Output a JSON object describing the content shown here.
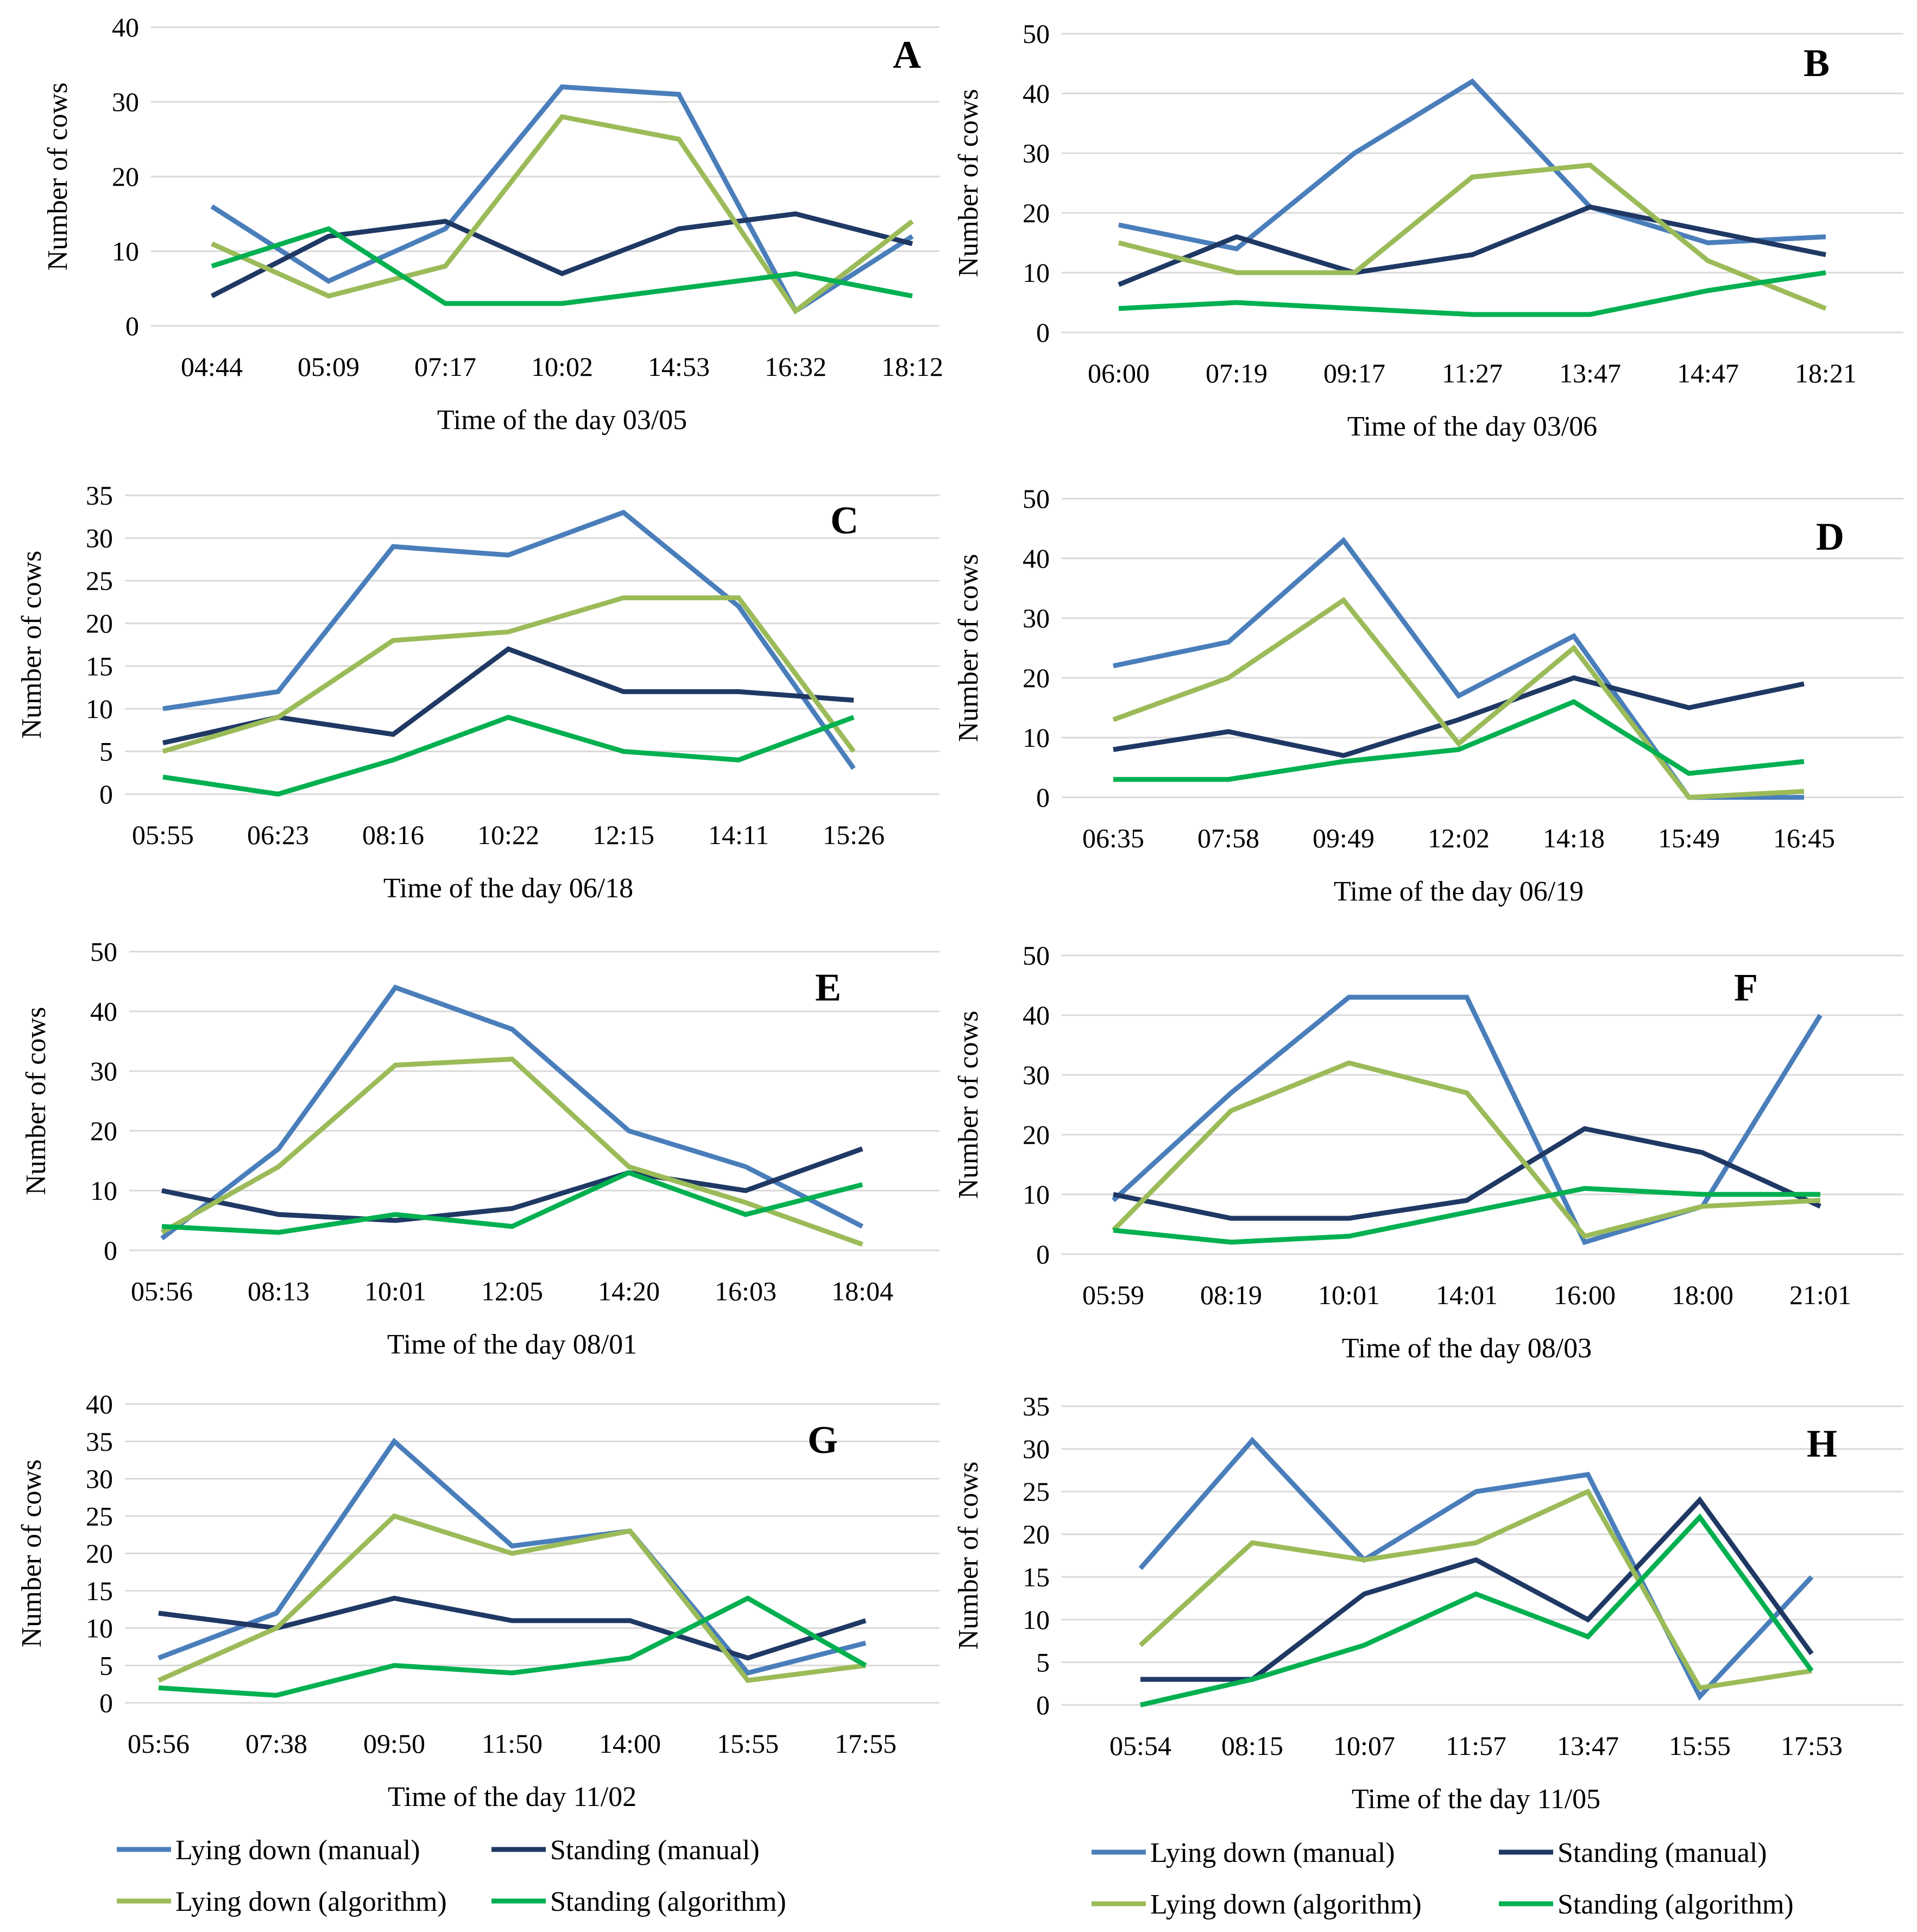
{
  "figure": {
    "y_axis_label": "Number of cows",
    "series_styles": [
      {
        "name": "Lying down (manual)",
        "color": "#4a7ebb"
      },
      {
        "name": "Standing (manual)",
        "color": "#1f3864"
      },
      {
        "name": "Lying down (algorithm)",
        "color": "#9bbb59"
      },
      {
        "name": "Standing (algorithm)",
        "color": "#00b050"
      }
    ],
    "legends": [
      {
        "placement": "bottom-left",
        "entries": [
          "Lying down (manual)",
          "Standing (manual)",
          "Lying down (algorithm)",
          "Standing (algorithm)"
        ]
      },
      {
        "placement": "bottom-right",
        "entries": [
          "Lying down (manual)",
          "Standing (manual)",
          "Lying down (algorithm)",
          "Standing (algorithm)"
        ]
      }
    ]
  },
  "chart_data": [
    {
      "panel": "A",
      "type": "line",
      "xlabel": "Time of the day 03/05",
      "ylabel": "Number of cows",
      "categories": [
        "04:44",
        "05:09",
        "07:17",
        "10:02",
        "14:53",
        "16:32",
        "18:12"
      ],
      "ylim": [
        0,
        40
      ],
      "yticks": [
        0,
        10,
        20,
        30,
        40
      ],
      "grid": true,
      "series": [
        {
          "name": "Lying down (manual)",
          "values": [
            16,
            6,
            13,
            32,
            31,
            2,
            12
          ]
        },
        {
          "name": "Standing (manual)",
          "values": [
            4,
            12,
            14,
            7,
            13,
            15,
            11
          ]
        },
        {
          "name": "Lying down (algorithm)",
          "values": [
            11,
            4,
            8,
            28,
            25,
            2,
            14
          ]
        },
        {
          "name": "Standing (algorithm)",
          "values": [
            8,
            13,
            3,
            3,
            5,
            7,
            4
          ]
        }
      ]
    },
    {
      "panel": "B",
      "type": "line",
      "xlabel": "Time of the day 03/06",
      "ylabel": "Number of cows",
      "categories": [
        "06:00",
        "07:19",
        "09:17",
        "11:27",
        "13:47",
        "14:47",
        "18:21"
      ],
      "ylim": [
        0,
        50
      ],
      "yticks": [
        0,
        10,
        20,
        30,
        40,
        50
      ],
      "grid": true,
      "series": [
        {
          "name": "Lying down (manual)",
          "values": [
            18,
            14,
            30,
            42,
            21,
            15,
            16
          ]
        },
        {
          "name": "Standing (manual)",
          "values": [
            8,
            16,
            10,
            13,
            21,
            17,
            13
          ]
        },
        {
          "name": "Lying down (algorithm)",
          "values": [
            15,
            10,
            10,
            26,
            28,
            12,
            4
          ]
        },
        {
          "name": "Standing (algorithm)",
          "values": [
            4,
            5,
            4,
            3,
            3,
            7,
            10
          ]
        }
      ]
    },
    {
      "panel": "C",
      "type": "line",
      "xlabel": "Time of the day 06/18",
      "ylabel": "Number of cows",
      "categories": [
        "05:55",
        "06:23",
        "08:16",
        "10:22",
        "12:15",
        "14:11",
        "15:26"
      ],
      "ylim": [
        0,
        35
      ],
      "yticks": [
        0,
        5,
        10,
        15,
        20,
        25,
        30,
        35
      ],
      "grid": true,
      "series": [
        {
          "name": "Lying down (manual)",
          "values": [
            10,
            12,
            29,
            28,
            33,
            22,
            3
          ]
        },
        {
          "name": "Standing (manual)",
          "values": [
            6,
            9,
            7,
            17,
            12,
            12,
            11
          ]
        },
        {
          "name": "Lying down (algorithm)",
          "values": [
            5,
            9,
            18,
            19,
            23,
            23,
            5
          ]
        },
        {
          "name": "Standing (algorithm)",
          "values": [
            2,
            0,
            4,
            9,
            5,
            4,
            9
          ]
        }
      ]
    },
    {
      "panel": "D",
      "type": "line",
      "xlabel": "Time of the day 06/19",
      "ylabel": "Number of cows",
      "categories": [
        "06:35",
        "07:58",
        "09:49",
        "12:02",
        "14:18",
        "15:49",
        "16:45"
      ],
      "ylim": [
        0,
        50
      ],
      "yticks": [
        0,
        10,
        20,
        30,
        40,
        50
      ],
      "grid": true,
      "series": [
        {
          "name": "Lying down (manual)",
          "values": [
            22,
            26,
            43,
            17,
            27,
            0,
            0
          ]
        },
        {
          "name": "Standing (manual)",
          "values": [
            8,
            11,
            7,
            13,
            20,
            15,
            19
          ]
        },
        {
          "name": "Lying down (algorithm)",
          "values": [
            13,
            20,
            33,
            9,
            25,
            0,
            1
          ]
        },
        {
          "name": "Standing (algorithm)",
          "values": [
            3,
            3,
            6,
            8,
            16,
            4,
            6
          ]
        }
      ]
    },
    {
      "panel": "E",
      "type": "line",
      "xlabel": "Time of the day 08/01",
      "ylabel": "Number of cows",
      "categories": [
        "05:56",
        "08:13",
        "10:01",
        "12:05",
        "14:20",
        "16:03",
        "18:04"
      ],
      "ylim": [
        0,
        50
      ],
      "yticks": [
        0,
        10,
        20,
        30,
        40,
        50
      ],
      "grid": true,
      "series": [
        {
          "name": "Lying down (manual)",
          "values": [
            2,
            17,
            44,
            37,
            20,
            14,
            4
          ]
        },
        {
          "name": "Standing (manual)",
          "values": [
            10,
            6,
            5,
            7,
            13,
            10,
            17
          ]
        },
        {
          "name": "Lying down (algorithm)",
          "values": [
            3,
            14,
            31,
            32,
            14,
            8,
            1
          ]
        },
        {
          "name": "Standing (algorithm)",
          "values": [
            4,
            3,
            6,
            4,
            13,
            6,
            11
          ]
        }
      ]
    },
    {
      "panel": "F",
      "type": "line",
      "xlabel": "Time of the day 08/03",
      "ylabel": "Number of cows",
      "categories": [
        "05:59",
        "08:19",
        "10:01",
        "14:01",
        "16:00",
        "18:00",
        "21:01"
      ],
      "ylim": [
        0,
        50
      ],
      "yticks": [
        0,
        10,
        20,
        30,
        40,
        50
      ],
      "grid": true,
      "series": [
        {
          "name": "Lying down (manual)",
          "values": [
            9,
            27,
            43,
            43,
            2,
            8,
            40
          ]
        },
        {
          "name": "Standing (manual)",
          "values": [
            10,
            6,
            6,
            9,
            21,
            17,
            8
          ]
        },
        {
          "name": "Lying down (algorithm)",
          "values": [
            4,
            24,
            32,
            27,
            3,
            8,
            9
          ]
        },
        {
          "name": "Standing (algorithm)",
          "values": [
            4,
            2,
            3,
            7,
            11,
            10,
            10
          ]
        }
      ]
    },
    {
      "panel": "G",
      "type": "line",
      "xlabel": "Time of the day 11/02",
      "ylabel": "Number of cows",
      "categories": [
        "05:56",
        "07:38",
        "09:50",
        "11:50",
        "14:00",
        "15:55",
        "17:55"
      ],
      "ylim": [
        0,
        40
      ],
      "yticks": [
        0,
        5,
        10,
        15,
        20,
        25,
        30,
        35,
        40
      ],
      "grid": true,
      "series": [
        {
          "name": "Lying down (manual)",
          "values": [
            6,
            12,
            35,
            21,
            23,
            4,
            8
          ]
        },
        {
          "name": "Standing (manual)",
          "values": [
            12,
            10,
            14,
            11,
            11,
            6,
            11
          ]
        },
        {
          "name": "Lying down (algorithm)",
          "values": [
            3,
            10,
            25,
            20,
            23,
            3,
            5
          ]
        },
        {
          "name": "Standing (algorithm)",
          "values": [
            2,
            1,
            5,
            4,
            6,
            14,
            5
          ]
        }
      ]
    },
    {
      "panel": "H",
      "type": "line",
      "xlabel": "Time of the day 11/05",
      "ylabel": "Number of cows",
      "categories": [
        "05:54",
        "08:15",
        "10:07",
        "11:57",
        "13:47",
        "15:55",
        "17:53"
      ],
      "ylim": [
        0,
        35
      ],
      "yticks": [
        0,
        5,
        10,
        15,
        20,
        25,
        30,
        35
      ],
      "grid": true,
      "series": [
        {
          "name": "Lying down (manual)",
          "values": [
            16,
            31,
            17,
            25,
            27,
            1,
            15
          ]
        },
        {
          "name": "Standing (manual)",
          "values": [
            3,
            3,
            13,
            17,
            10,
            24,
            6
          ]
        },
        {
          "name": "Lying down (algorithm)",
          "values": [
            7,
            19,
            17,
            19,
            25,
            2,
            4
          ]
        },
        {
          "name": "Standing (algorithm)",
          "values": [
            0,
            3,
            7,
            13,
            8,
            22,
            4
          ]
        }
      ]
    }
  ]
}
